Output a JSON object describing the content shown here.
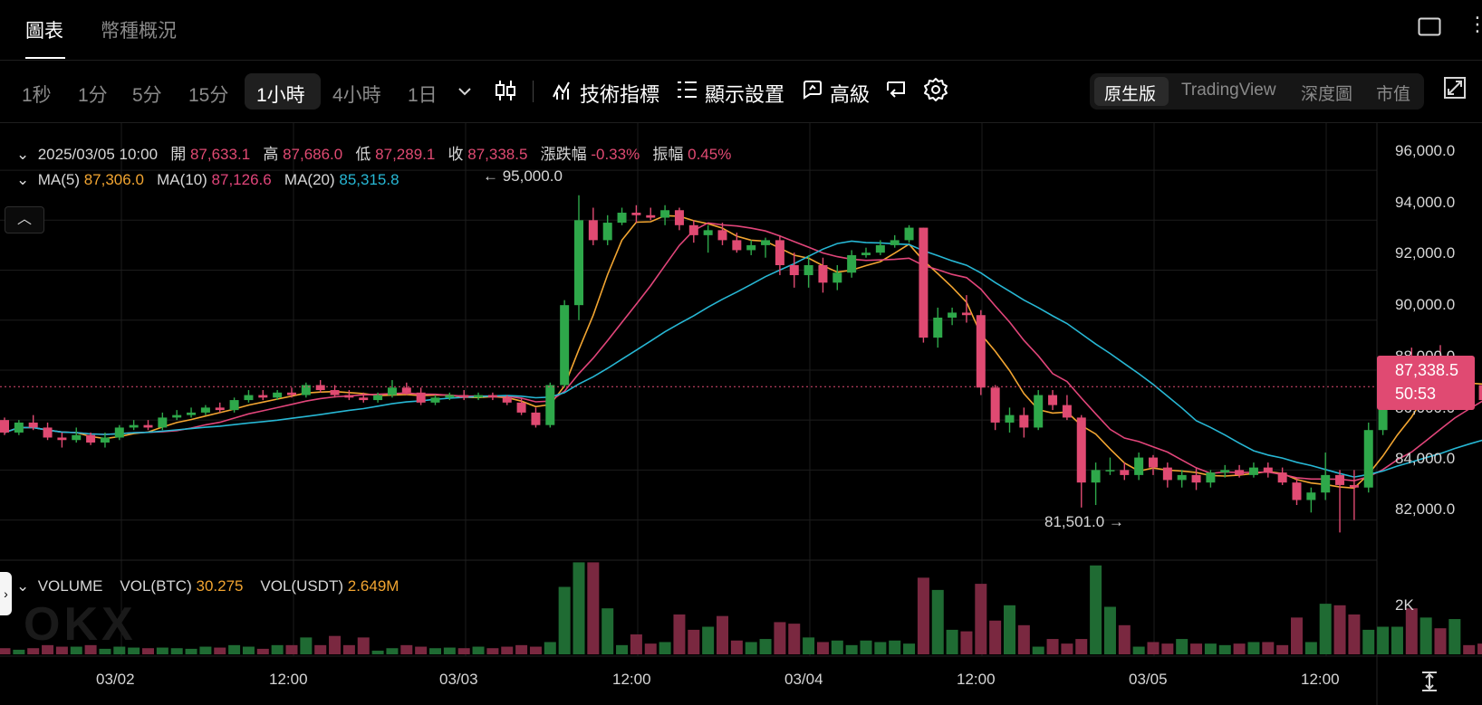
{
  "top_tabs": {
    "chart": "圖表",
    "overview": "幣種概況"
  },
  "intervals": [
    "1秒",
    "1分",
    "5分",
    "15分",
    "1小時",
    "4小時",
    "1日"
  ],
  "tools": {
    "indicators": "技術指標",
    "display": "顯示設置",
    "advanced": "高級"
  },
  "views": [
    "原生版",
    "TradingView",
    "深度圖",
    "市值"
  ],
  "ohlc": {
    "date": "2025/03/05 10:00",
    "open_label": "開",
    "open": "87,633.1",
    "high_label": "高",
    "high": "87,686.0",
    "low_label": "低",
    "low": "87,289.1",
    "close_label": "收",
    "close": "87,338.5",
    "change_label": "漲跌幅",
    "change": "-0.33%",
    "amp_label": "振幅",
    "amp": "0.45%"
  },
  "ma": {
    "ma5_label": "MA(5)",
    "ma5": "87,306.0",
    "ma10_label": "MA(10)",
    "ma10": "87,126.6",
    "ma20_label": "MA(20)",
    "ma20": "85,315.8"
  },
  "annotations": {
    "high": "← 95,000.0",
    "low": "81,501.0 →"
  },
  "price_axis": [
    "96,000.0",
    "94,000.0",
    "92,000.0",
    "90,000.0",
    "88,000.0",
    "86,000.0",
    "84,000.0",
    "82,000.0"
  ],
  "current_price": {
    "price": "87,338.5",
    "countdown": "50:53"
  },
  "volume": {
    "label": "VOLUME",
    "btc_label": "VOL(BTC)",
    "btc": "30.275",
    "usdt_label": "VOL(USDT)",
    "usdt": "2.649M",
    "axis": "2K"
  },
  "time_axis": [
    "03/02",
    "12:00",
    "03/03",
    "12:00",
    "03/04",
    "12:00",
    "03/05",
    "12:00"
  ],
  "watermark": "OKX",
  "colors": {
    "up": "#2ea84a",
    "down": "#e04a72",
    "ma5": "#f2a531",
    "ma10": "#e1457a",
    "ma20": "#27b7d4"
  },
  "chart_data": {
    "type": "candlestick",
    "interval": "1小時",
    "ylim": [
      80500,
      96800
    ],
    "highest": 95000.0,
    "lowest": 81501.0,
    "candles": [
      [
        86000,
        86100,
        85400,
        85500
      ],
      [
        85500,
        86000,
        85400,
        85900
      ],
      [
        85900,
        86200,
        85600,
        85700
      ],
      [
        85700,
        85900,
        85200,
        85300
      ],
      [
        85300,
        85500,
        84900,
        85200
      ],
      [
        85200,
        85700,
        85100,
        85400
      ],
      [
        85400,
        85500,
        85000,
        85100
      ],
      [
        85100,
        85500,
        84900,
        85300
      ],
      [
        85300,
        85800,
        85200,
        85700
      ],
      [
        85700,
        86000,
        85600,
        85800
      ],
      [
        85800,
        86000,
        85600,
        85700
      ],
      [
        85700,
        86300,
        85600,
        86100
      ],
      [
        86100,
        86400,
        86000,
        86200
      ],
      [
        86200,
        86500,
        86100,
        86300
      ],
      [
        86300,
        86600,
        86200,
        86500
      ],
      [
        86500,
        86700,
        86300,
        86400
      ],
      [
        86400,
        86900,
        86300,
        86800
      ],
      [
        86800,
        87200,
        86700,
        87000
      ],
      [
        87000,
        87200,
        86800,
        86900
      ],
      [
        86900,
        87200,
        86800,
        87100
      ],
      [
        87100,
        87300,
        86900,
        87000
      ],
      [
        87000,
        87500,
        86900,
        87400
      ],
      [
        87400,
        87600,
        87100,
        87200
      ],
      [
        87200,
        87400,
        86900,
        87000
      ],
      [
        87000,
        87200,
        86800,
        86900
      ],
      [
        86900,
        87100,
        86700,
        86800
      ],
      [
        86800,
        87100,
        86700,
        87000
      ],
      [
        87000,
        87600,
        86900,
        87300
      ],
      [
        87300,
        87500,
        87000,
        87100
      ],
      [
        87100,
        87300,
        86600,
        86700
      ],
      [
        86700,
        87000,
        86600,
        86900
      ],
      [
        86900,
        87100,
        86800,
        87000
      ],
      [
        87000,
        87200,
        86800,
        86900
      ],
      [
        86900,
        87100,
        86800,
        87000
      ],
      [
        87000,
        87100,
        86800,
        86900
      ],
      [
        86900,
        87000,
        86600,
        86700
      ],
      [
        86700,
        86900,
        86200,
        86300
      ],
      [
        86300,
        86500,
        85700,
        85800
      ],
      [
        85800,
        87500,
        85700,
        87400
      ],
      [
        87400,
        90800,
        87300,
        90600
      ],
      [
        90600,
        95000,
        90000,
        94000
      ],
      [
        94000,
        94500,
        93000,
        93200
      ],
      [
        93200,
        94200,
        93000,
        93900
      ],
      [
        93900,
        94500,
        93800,
        94300
      ],
      [
        94300,
        94600,
        93900,
        94200
      ],
      [
        94200,
        94500,
        94000,
        94100
      ],
      [
        94100,
        94600,
        93800,
        94400
      ],
      [
        94400,
        94500,
        93600,
        93800
      ],
      [
        93800,
        94000,
        93100,
        93400
      ],
      [
        93400,
        93800,
        92700,
        93600
      ],
      [
        93600,
        93900,
        93000,
        93200
      ],
      [
        93200,
        93500,
        92700,
        92800
      ],
      [
        92800,
        93200,
        92600,
        93000
      ],
      [
        93000,
        93300,
        92500,
        93200
      ],
      [
        93200,
        93400,
        91800,
        92200
      ],
      [
        92200,
        92700,
        91300,
        91800
      ],
      [
        91800,
        92600,
        91300,
        92200
      ],
      [
        92200,
        92500,
        91100,
        91500
      ],
      [
        91500,
        92200,
        91200,
        91900
      ],
      [
        91900,
        92800,
        91700,
        92600
      ],
      [
        92600,
        92900,
        92500,
        92700
      ],
      [
        92700,
        93200,
        92600,
        93000
      ],
      [
        93000,
        93400,
        92900,
        93200
      ],
      [
        93200,
        93800,
        93100,
        93700
      ],
      [
        93700,
        93700,
        89100,
        89300
      ],
      [
        89300,
        90500,
        88900,
        90100
      ],
      [
        90100,
        90500,
        89800,
        90300
      ],
      [
        90300,
        91000,
        89900,
        90200
      ],
      [
        90200,
        90400,
        87000,
        87300
      ],
      [
        87300,
        87400,
        85600,
        85900
      ],
      [
        85900,
        86500,
        85500,
        86200
      ],
      [
        86200,
        86500,
        85300,
        85700
      ],
      [
        85700,
        87200,
        85600,
        87000
      ],
      [
        87000,
        87200,
        86400,
        86600
      ],
      [
        86600,
        87000,
        86000,
        86100
      ],
      [
        86100,
        86200,
        82500,
        83500
      ],
      [
        83500,
        84300,
        82600,
        84000
      ],
      [
        84000,
        84500,
        83800,
        84000
      ],
      [
        84000,
        84300,
        83600,
        83800
      ],
      [
        83800,
        84700,
        83600,
        84500
      ],
      [
        84500,
        84600,
        83800,
        84100
      ],
      [
        84100,
        84300,
        83300,
        83600
      ],
      [
        83600,
        84000,
        83300,
        83800
      ],
      [
        83800,
        84100,
        83200,
        83500
      ],
      [
        83500,
        84000,
        83300,
        83900
      ],
      [
        83900,
        84200,
        83700,
        84000
      ],
      [
        84000,
        84200,
        83700,
        83800
      ],
      [
        83800,
        84300,
        83700,
        84100
      ],
      [
        84100,
        84300,
        83700,
        83900
      ],
      [
        83900,
        84100,
        83400,
        83500
      ],
      [
        83500,
        83700,
        82600,
        82800
      ],
      [
        82800,
        83300,
        82300,
        83100
      ],
      [
        83100,
        84700,
        82800,
        83800
      ],
      [
        83800,
        84000,
        81501,
        83400
      ],
      [
        83400,
        84000,
        82000,
        83300
      ],
      [
        83300,
        85900,
        83100,
        85600
      ],
      [
        85600,
        87000,
        85400,
        86700
      ],
      [
        86700,
        88500,
        86500,
        88000
      ],
      [
        88000,
        88900,
        86900,
        87000
      ],
      [
        87000,
        88600,
        86800,
        88000
      ],
      [
        88000,
        89000,
        87300,
        87400
      ],
      [
        87400,
        87900,
        87200,
        87600
      ],
      [
        87600,
        87800,
        87300,
        87400
      ],
      [
        87400,
        87600,
        86600,
        86800
      ],
      [
        86800,
        87800,
        86700,
        87600
      ],
      [
        87633.1,
        87686.0,
        87289.1,
        87338.5
      ]
    ],
    "volumes": [
      200,
      150,
      200,
      300,
      250,
      250,
      300,
      180,
      250,
      220,
      200,
      220,
      200,
      180,
      250,
      220,
      300,
      250,
      180,
      300,
      300,
      550,
      300,
      600,
      300,
      550,
      120,
      200,
      300,
      250,
      200,
      220,
      200,
      250,
      200,
      250,
      300,
      250,
      400,
      2200,
      3000,
      3000,
      1500,
      300,
      650,
      350,
      400,
      1300,
      800,
      900,
      1250,
      450,
      400,
      500,
      1050,
      1000,
      550,
      400,
      450,
      300,
      450,
      400,
      450,
      350,
      2500,
      2100,
      800,
      750,
      2300,
      1100,
      1600,
      950,
      250,
      500,
      350,
      500,
      2900,
      1550,
      950,
      250,
      400,
      350,
      500,
      350,
      350,
      300,
      350,
      400,
      400,
      300,
      1200,
      400,
      1650,
      1600,
      1300,
      800,
      900,
      900,
      1500,
      1200,
      850,
      1150,
      300,
      350,
      400,
      400
    ]
  }
}
